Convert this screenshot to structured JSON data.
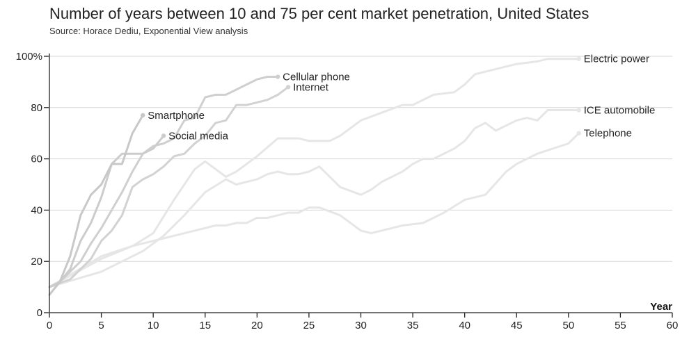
{
  "chart_data": {
    "type": "line",
    "title": "Number of years between 10 and 75 per cent market penetration, United States",
    "subtitle": "Source: Horace Dediu, Exponential View analysis",
    "xlabel": "Year",
    "ylabel": "",
    "xlim": [
      0,
      60
    ],
    "ylim": [
      0,
      100
    ],
    "xticks": [
      0,
      5,
      10,
      15,
      20,
      25,
      30,
      35,
      40,
      45,
      50,
      55,
      60
    ],
    "yticks": [
      0,
      20,
      40,
      60,
      80,
      100
    ],
    "ytick_labels": [
      "0",
      "20",
      "40",
      "60",
      "80",
      "100%"
    ],
    "grid": true,
    "series": [
      {
        "name": "Electric power",
        "color": "#e6e6e6",
        "x": [
          0,
          5,
          8,
          10,
          12,
          14,
          15,
          17,
          18,
          20,
          22,
          24,
          25,
          27,
          28,
          30,
          32,
          34,
          35,
          37,
          39,
          40,
          41,
          43,
          45,
          47,
          48,
          51
        ],
        "y": [
          10,
          22,
          26,
          31,
          44,
          56,
          59,
          53,
          55,
          61,
          68,
          68,
          67,
          67,
          69,
          75,
          78,
          81,
          81,
          85,
          86,
          89,
          93,
          95,
          97,
          98,
          99,
          99
        ]
      },
      {
        "name": "ICE automobile",
        "color": "#e6e6e6",
        "x": [
          0,
          5,
          7,
          9,
          11,
          13,
          15,
          17,
          18,
          20,
          21,
          22,
          23,
          24,
          25,
          26,
          27,
          28,
          30,
          31,
          32,
          34,
          35,
          36,
          37,
          39,
          40,
          41,
          42,
          43,
          44,
          45,
          46,
          47,
          48,
          51
        ],
        "y": [
          10,
          16,
          20,
          24,
          30,
          38,
          47,
          52,
          50,
          52,
          54,
          55,
          54,
          54,
          55,
          57,
          53,
          49,
          46,
          48,
          51,
          55,
          58,
          60,
          60,
          64,
          67,
          72,
          74,
          71,
          73,
          75,
          76,
          75,
          79,
          79
        ]
      },
      {
        "name": "Telephone",
        "color": "#e6e6e6",
        "x": [
          0,
          5,
          8,
          11,
          14,
          16,
          17,
          18,
          19,
          20,
          21,
          22,
          23,
          24,
          25,
          26,
          28,
          30,
          31,
          33,
          34,
          36,
          38,
          40,
          42,
          44,
          45,
          47,
          50,
          51
        ],
        "y": [
          10,
          21,
          26,
          29,
          32,
          34,
          34,
          35,
          35,
          37,
          37,
          38,
          39,
          39,
          41,
          41,
          38,
          32,
          31,
          33,
          34,
          35,
          39,
          44,
          46,
          55,
          58,
          62,
          66,
          70
        ]
      },
      {
        "name": "Internet",
        "color": "#d2d2d2",
        "x": [
          0,
          2,
          3,
          4,
          5,
          6,
          7,
          8,
          9,
          10,
          11,
          12,
          13,
          14,
          15,
          16,
          17,
          18,
          19,
          20,
          21,
          22,
          23
        ],
        "y": [
          10,
          13,
          17,
          21,
          28,
          32,
          38,
          49,
          52,
          54,
          57,
          61,
          62,
          66,
          69,
          74,
          75,
          81,
          81,
          82,
          83,
          85,
          88
        ]
      },
      {
        "name": "Cellular phone",
        "color": "#cfcfcf",
        "x": [
          0,
          1,
          2,
          3,
          4,
          5,
          6,
          7,
          8,
          9,
          10,
          11,
          12,
          13,
          14,
          15,
          16,
          17,
          18,
          19,
          20,
          21,
          22
        ],
        "y": [
          7,
          12,
          16,
          20,
          27,
          33,
          40,
          47,
          55,
          62,
          65,
          66,
          68,
          75,
          76,
          84,
          85,
          85,
          87,
          89,
          91,
          92,
          92
        ]
      },
      {
        "name": "Social media",
        "color": "#cccccc",
        "x": [
          0,
          1,
          2,
          3,
          4,
          5,
          6,
          7,
          8,
          9,
          10,
          11
        ],
        "y": [
          10,
          12,
          17,
          28,
          35,
          45,
          58,
          62,
          62,
          62,
          64,
          69
        ]
      },
      {
        "name": "Smartphone",
        "color": "#c8c8c8",
        "x": [
          0,
          1,
          2,
          3,
          4,
          5,
          6,
          7,
          8,
          9
        ],
        "y": [
          7,
          12,
          22,
          38,
          46,
          50,
          58,
          58,
          70,
          77
        ]
      }
    ]
  }
}
